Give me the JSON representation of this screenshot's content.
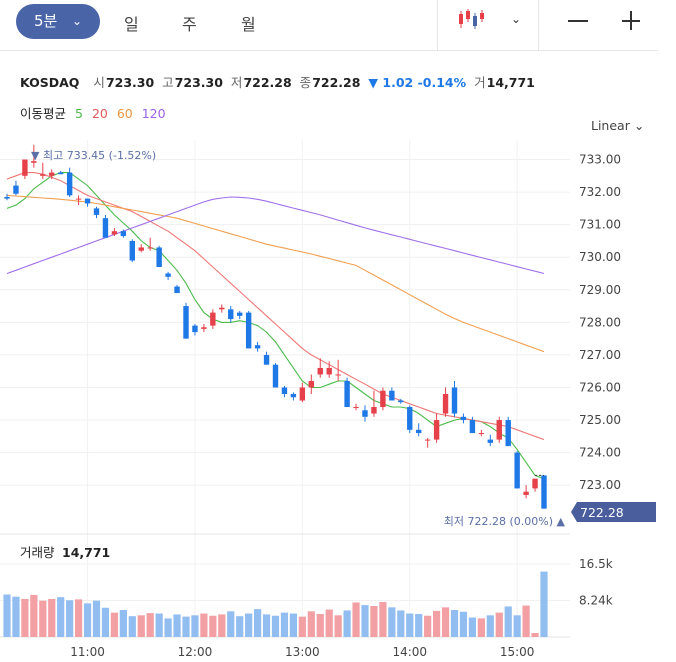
{
  "toolbar": {
    "interval": "5분",
    "tabs": [
      "일",
      "주",
      "월"
    ]
  },
  "quote": {
    "symbol": "KOSDAQ",
    "open_label": "시",
    "open": "723.30",
    "high_label": "고",
    "high": "723.30",
    "low_label": "저",
    "low": "722.28",
    "close_label": "종",
    "close": "722.28",
    "change": "▼ 1.02 -0.14%",
    "volume_label": "거",
    "volume": "14,771"
  },
  "ma_legend": {
    "label": "이동평균",
    "periods": [
      "5",
      "20",
      "60",
      "120"
    ]
  },
  "scale_mode": "Linear",
  "colors": {
    "up": "#e6414b",
    "down": "#1e78e6",
    "ma5": "#4cbb4c",
    "ma20": "#ee7777",
    "ma60": "#f0a050",
    "ma120": "#a070e8",
    "badge": "#4a5d9c"
  },
  "annotations": {
    "high": "▼ 최고 733.45 (-1.52%)",
    "low": "최저 722.28 (0.00%) ▲",
    "last_price": "722.28"
  },
  "volume_panel": {
    "label": "거래량",
    "value": "14,771"
  },
  "chart_data": {
    "type": "candlestick",
    "x_ticks": [
      "11:00",
      "12:00",
      "13:00",
      "14:00",
      "15:00"
    ],
    "x_tick_index": [
      9,
      21,
      33,
      45,
      57
    ],
    "y_ticks": [
      "733.00",
      "732.00",
      "731.00",
      "730.00",
      "729.00",
      "728.00",
      "727.00",
      "726.00",
      "725.00",
      "724.00",
      "723.00"
    ],
    "ylim": [
      721.9,
      733.6
    ],
    "volume_ticks": [
      "16.5k",
      "8.24k"
    ],
    "volume_tick_values": [
      16500,
      8240
    ],
    "volume_max": 20100,
    "candles": [
      [
        731.85,
        731.95,
        731.75,
        731.8
      ],
      [
        732.2,
        732.35,
        731.9,
        731.95
      ],
      [
        732.5,
        733.0,
        732.4,
        733.0
      ],
      [
        732.9,
        733.45,
        732.75,
        732.95
      ],
      [
        732.5,
        732.9,
        732.4,
        732.55
      ],
      [
        732.5,
        732.7,
        732.4,
        732.6
      ],
      [
        732.6,
        732.65,
        732.55,
        732.55
      ],
      [
        732.6,
        732.75,
        731.85,
        731.9
      ],
      [
        731.8,
        731.9,
        731.6,
        731.8
      ],
      [
        731.8,
        731.8,
        731.55,
        731.65
      ],
      [
        731.5,
        731.55,
        731.2,
        731.3
      ],
      [
        731.2,
        731.3,
        730.6,
        730.6
      ],
      [
        730.7,
        730.9,
        730.65,
        730.8
      ],
      [
        730.8,
        730.85,
        730.6,
        730.65
      ],
      [
        730.5,
        730.55,
        729.85,
        729.9
      ],
      [
        730.2,
        730.4,
        730.15,
        730.3
      ],
      [
        730.3,
        730.6,
        730.2,
        730.3
      ],
      [
        730.3,
        730.35,
        729.7,
        729.7
      ],
      [
        729.5,
        729.55,
        729.3,
        729.4
      ],
      [
        729.1,
        729.15,
        728.9,
        728.9
      ],
      [
        728.5,
        728.6,
        727.5,
        727.5
      ],
      [
        727.9,
        727.95,
        727.6,
        727.7
      ],
      [
        727.8,
        727.95,
        727.7,
        727.85
      ],
      [
        727.9,
        728.4,
        727.8,
        728.3
      ],
      [
        728.4,
        728.55,
        728.3,
        728.45
      ],
      [
        728.4,
        728.5,
        728.0,
        728.1
      ],
      [
        728.3,
        728.35,
        728.1,
        728.2
      ],
      [
        728.3,
        728.35,
        727.2,
        727.2
      ],
      [
        727.3,
        727.4,
        727.1,
        727.2
      ],
      [
        727.0,
        727.1,
        726.7,
        726.7
      ],
      [
        726.7,
        726.75,
        726.0,
        726.0
      ],
      [
        726.0,
        726.05,
        725.7,
        725.8
      ],
      [
        725.8,
        725.85,
        725.6,
        725.7
      ],
      [
        725.6,
        726.15,
        725.55,
        726.0
      ],
      [
        726.0,
        726.4,
        725.8,
        726.2
      ],
      [
        726.4,
        726.9,
        726.3,
        726.6
      ],
      [
        726.4,
        726.8,
        726.3,
        726.6
      ],
      [
        726.4,
        726.85,
        726.2,
        726.4
      ],
      [
        726.2,
        726.3,
        725.4,
        725.4
      ],
      [
        725.4,
        725.5,
        725.3,
        725.4
      ],
      [
        725.3,
        725.45,
        724.95,
        725.1
      ],
      [
        725.2,
        725.9,
        725.1,
        725.4
      ],
      [
        725.4,
        726.0,
        725.3,
        725.9
      ],
      [
        725.9,
        726.0,
        725.6,
        725.6
      ],
      [
        725.6,
        725.65,
        725.5,
        725.55
      ],
      [
        725.4,
        725.45,
        724.6,
        724.7
      ],
      [
        724.7,
        724.9,
        724.5,
        724.6
      ],
      [
        724.4,
        724.45,
        724.15,
        724.4
      ],
      [
        724.4,
        725.2,
        724.3,
        725.0
      ],
      [
        725.2,
        726.0,
        725.1,
        725.8
      ],
      [
        726.0,
        726.2,
        725.1,
        725.2
      ],
      [
        725.1,
        725.2,
        724.9,
        725.0
      ],
      [
        725.0,
        725.1,
        724.6,
        724.6
      ],
      [
        724.6,
        724.7,
        724.5,
        724.6
      ],
      [
        724.4,
        724.55,
        724.2,
        724.3
      ],
      [
        724.4,
        725.1,
        724.3,
        725.0
      ],
      [
        725.0,
        725.1,
        724.2,
        724.2
      ],
      [
        724.0,
        724.05,
        722.9,
        722.9
      ],
      [
        722.7,
        723.0,
        722.6,
        722.8
      ],
      [
        722.9,
        723.2,
        722.8,
        723.2
      ],
      [
        723.3,
        723.3,
        722.28,
        722.28
      ]
    ],
    "volume": [
      9600,
      9100,
      8600,
      9500,
      8200,
      8600,
      9000,
      8300,
      8500,
      7600,
      8200,
      6600,
      5500,
      6100,
      4700,
      4900,
      5400,
      5300,
      4200,
      5100,
      4600,
      4900,
      5300,
      4800,
      5100,
      5800,
      4700,
      5300,
      6300,
      5100,
      4800,
      5500,
      5300,
      4600,
      5800,
      5200,
      6200,
      4900,
      6000,
      7800,
      7200,
      7000,
      7900,
      6700,
      6000,
      5300,
      5200,
      4800,
      5900,
      6700,
      6100,
      5700,
      4400,
      4200,
      4900,
      5500,
      6900,
      4900,
      7100,
      900,
      14771
    ],
    "ma": [
      {
        "name": "5",
        "values": [
          731.5,
          731.6,
          731.8,
          732.1,
          732.3,
          732.5,
          732.6,
          732.6,
          732.4,
          732.2,
          731.9,
          731.6,
          731.3,
          731.05,
          730.8,
          730.5,
          730.3,
          730.2,
          729.9,
          729.6,
          729.2,
          728.7,
          728.3,
          728.1,
          728.0,
          728.0,
          728.05,
          728.0,
          727.9,
          727.7,
          727.4,
          727.0,
          726.6,
          726.2,
          726.0,
          726.0,
          726.1,
          726.2,
          726.2,
          726.0,
          725.8,
          725.6,
          725.5,
          725.4,
          725.4,
          725.35,
          725.2,
          725.0,
          724.8,
          724.9,
          725.0,
          725.05,
          725.0,
          724.95,
          724.8,
          724.6,
          724.45,
          724.1,
          723.7,
          723.3,
          723.2
        ]
      },
      {
        "name": "20",
        "values": [
          732.4,
          732.5,
          732.6,
          732.6,
          732.55,
          732.45,
          732.35,
          732.2,
          732.05,
          731.9,
          731.8,
          731.7,
          731.6,
          731.5,
          731.4,
          731.25,
          731.1,
          730.95,
          730.8,
          730.6,
          730.4,
          730.2,
          729.95,
          729.7,
          729.45,
          729.2,
          728.95,
          728.7,
          728.45,
          728.2,
          727.95,
          727.7,
          727.45,
          727.2,
          727.0,
          726.85,
          726.7,
          726.55,
          726.4,
          726.25,
          726.1,
          725.95,
          725.8,
          725.7,
          725.6,
          725.5,
          725.4,
          725.3,
          725.2,
          725.15,
          725.1,
          725.05,
          725.0,
          724.95,
          724.9,
          724.85,
          724.8,
          724.7,
          724.6,
          724.5,
          724.4
        ]
      },
      {
        "name": "60",
        "values": [
          731.9,
          731.88,
          731.86,
          731.84,
          731.82,
          731.8,
          731.78,
          731.75,
          731.72,
          731.7,
          731.65,
          731.6,
          731.55,
          731.5,
          731.45,
          731.4,
          731.35,
          731.3,
          731.25,
          731.2,
          731.12,
          731.04,
          730.96,
          730.88,
          730.8,
          730.72,
          730.64,
          730.56,
          730.48,
          730.4,
          730.34,
          730.28,
          730.22,
          730.16,
          730.1,
          730.03,
          729.96,
          729.89,
          729.82,
          729.75,
          729.6,
          729.45,
          729.3,
          729.15,
          729.0,
          728.85,
          728.7,
          728.55,
          728.4,
          728.25,
          728.12,
          728.0,
          727.9,
          727.8,
          727.7,
          727.6,
          727.5,
          727.4,
          727.3,
          727.2,
          727.1
        ]
      },
      {
        "name": "120",
        "values": [
          729.5,
          729.6,
          729.7,
          729.8,
          729.9,
          730.0,
          730.1,
          730.2,
          730.3,
          730.4,
          730.5,
          730.6,
          730.7,
          730.8,
          730.9,
          731.0,
          731.1,
          731.2,
          731.3,
          731.4,
          731.5,
          731.6,
          731.7,
          731.78,
          731.82,
          731.85,
          731.84,
          731.82,
          731.78,
          731.72,
          731.65,
          731.58,
          731.51,
          731.44,
          731.37,
          731.3,
          731.22,
          731.14,
          731.06,
          730.98,
          730.9,
          730.83,
          730.76,
          730.69,
          730.62,
          730.55,
          730.48,
          730.41,
          730.34,
          730.27,
          730.2,
          730.13,
          730.06,
          729.99,
          729.92,
          729.85,
          729.78,
          729.71,
          729.64,
          729.57,
          729.5
        ]
      }
    ]
  }
}
